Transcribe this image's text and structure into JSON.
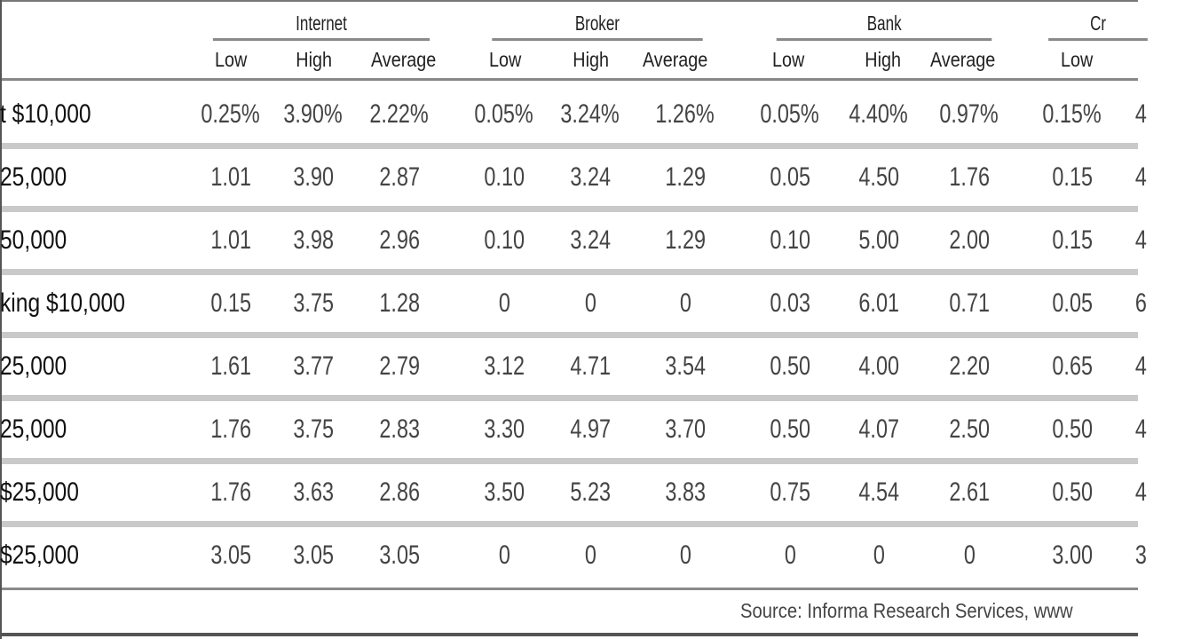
{
  "groups": [
    "Internet",
    "Broker",
    "Bank",
    "Cr"
  ],
  "subheaders": [
    [
      "Low",
      "High",
      "Average"
    ],
    [
      "Low",
      "High",
      "Average"
    ],
    [
      "Low",
      "High",
      "Average"
    ],
    [
      "Low",
      ""
    ]
  ],
  "rows": [
    {
      "label": "t $10,000",
      "values": [
        "0.25%",
        "3.90%",
        "2.22%",
        "0.05%",
        "3.24%",
        "1.26%",
        "0.05%",
        "4.40%",
        "0.97%",
        "0.15%",
        "4"
      ]
    },
    {
      "label": "25,000",
      "values": [
        "1.01",
        "3.90",
        "2.87",
        "0.10",
        "3.24",
        "1.29",
        "0.05",
        "4.50",
        "1.76",
        "0.15",
        "4"
      ]
    },
    {
      "label": "50,000",
      "values": [
        "1.01",
        "3.98",
        "2.96",
        "0.10",
        "3.24",
        "1.29",
        "0.10",
        "5.00",
        "2.00",
        "0.15",
        "4"
      ]
    },
    {
      "label": "king $10,000",
      "values": [
        "0.15",
        "3.75",
        "1.28",
        "0",
        "0",
        "0",
        "0.03",
        "6.01",
        "0.71",
        "0.05",
        "6"
      ]
    },
    {
      "label": "25,000",
      "values": [
        "1.61",
        "3.77",
        "2.79",
        "3.12",
        "4.71",
        "3.54",
        "0.50",
        "4.00",
        "2.20",
        "0.65",
        "4"
      ]
    },
    {
      "label": "25,000",
      "values": [
        "1.76",
        "3.75",
        "2.83",
        "3.30",
        "4.97",
        "3.70",
        "0.50",
        "4.07",
        "2.50",
        "0.50",
        "4"
      ]
    },
    {
      "label": "$25,000",
      "values": [
        "1.76",
        "3.63",
        "2.86",
        "3.50",
        "5.23",
        "3.83",
        "0.75",
        "4.54",
        "2.61",
        "0.50",
        "4"
      ]
    },
    {
      "label": "$25,000",
      "values": [
        "3.05",
        "3.05",
        "3.05",
        "0",
        "0",
        "0",
        "0",
        "0",
        "0",
        "3.00",
        "3"
      ]
    }
  ],
  "source": "Source: Informa Research Services, www"
}
